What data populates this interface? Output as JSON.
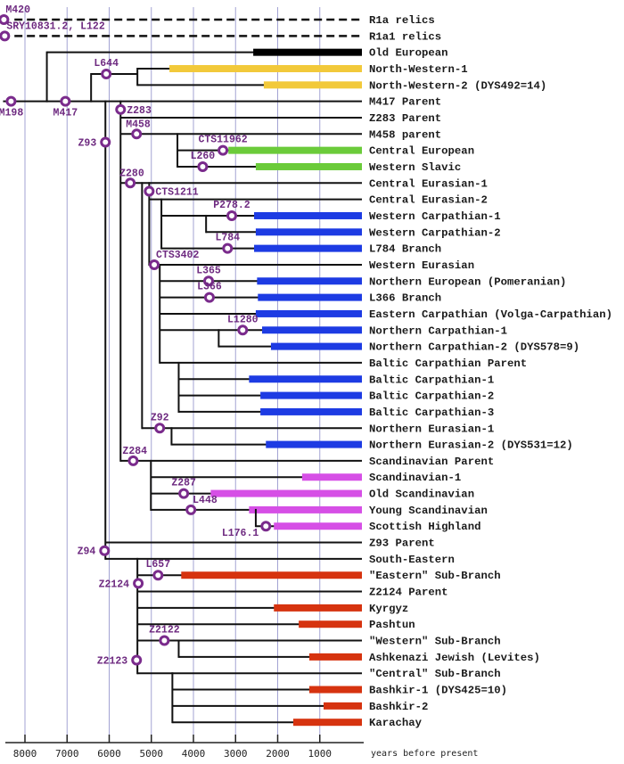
{
  "colors": {
    "grid": "#a3a3d3",
    "line": "#111111",
    "marker": "#7a2b8c",
    "black": "#000000",
    "yellow": "#f2c93a",
    "green": "#6bcb3a",
    "blue": "#1d3be3",
    "magenta": "#d64fe6",
    "red": "#d6330f"
  },
  "axis": {
    "title": "years before present",
    "ticks": [
      8000,
      7000,
      6000,
      5000,
      4000,
      3000,
      2000,
      1000
    ],
    "range": [
      8600,
      0
    ]
  },
  "rows": [
    {
      "label": "R1a relics",
      "start": 8250,
      "dashed": true
    },
    {
      "label": "R1a1 relics",
      "start": 8250,
      "dashed": true
    },
    {
      "label": "Old European",
      "start": 7480,
      "bar": 2580,
      "color": "black"
    },
    {
      "label": "North-Western-1",
      "start": 5330,
      "bar": 4570,
      "color": "yellow"
    },
    {
      "label": "North-Western-2 (DYS492=14)",
      "start": 5330,
      "bar": 2330,
      "color": "yellow"
    },
    {
      "label": "M417 Parent",
      "start": 8520
    },
    {
      "label": "Z283 Parent",
      "start": 5730
    },
    {
      "label": "M458 parent",
      "start": 5730
    },
    {
      "label": "Central European",
      "start": 4380,
      "bar": 3170,
      "color": "green"
    },
    {
      "label": "Western Slavic",
      "start": 4380,
      "bar": 2520,
      "color": "green"
    },
    {
      "label": "Central Eurasian-1",
      "start": 5730
    },
    {
      "label": "Central Eurasian-2",
      "start": 5050
    },
    {
      "label": "Western Carpathian-1",
      "start": 4760,
      "bar": 2560,
      "color": "blue"
    },
    {
      "label": "Western Carpathian-2",
      "start": 3700,
      "bar": 2520,
      "color": "blue"
    },
    {
      "label": "L784 Branch",
      "start": 4760,
      "bar": 2560,
      "color": "blue"
    },
    {
      "label": "Western Eurasian",
      "start": 5050
    },
    {
      "label": "Northern European (Pomeranian)",
      "start": 4800,
      "bar": 2490,
      "color": "blue"
    },
    {
      "label": "L366 Branch",
      "start": 4800,
      "bar": 2470,
      "color": "blue"
    },
    {
      "label": "Eastern Carpathian (Volga-Carpathian)",
      "start": 4800,
      "bar": 2520,
      "color": "blue"
    },
    {
      "label": "Northern Carpathian-1",
      "start": 4800,
      "bar": 2370,
      "color": "blue"
    },
    {
      "label": "Northern Carpathian-2 (DYS578=9)",
      "start": 3400,
      "bar": 2160,
      "color": "blue"
    },
    {
      "label": "Baltic Carpathian Parent",
      "start": 4800
    },
    {
      "label": "Baltic Carpathian-1",
      "start": 4350,
      "bar": 2680,
      "color": "blue"
    },
    {
      "label": "Baltic Carpathian-2",
      "start": 4350,
      "bar": 2410,
      "color": "blue"
    },
    {
      "label": "Baltic Carpathian-3",
      "start": 4350,
      "bar": 2410,
      "color": "blue"
    },
    {
      "label": "Northern Eurasian-1",
      "start": 5220
    },
    {
      "label": "Northern Eurasian-2 (DYS531=12)",
      "start": 4520,
      "bar": 2280,
      "color": "blue"
    },
    {
      "label": "Scandinavian Parent",
      "start": 5730
    },
    {
      "label": "Scandinavian-1",
      "start": 5010,
      "bar": 1420,
      "color": "magenta"
    },
    {
      "label": "Old Scandinavian",
      "start": 5010,
      "bar": 3590,
      "color": "magenta"
    },
    {
      "label": "Young Scandinavian",
      "start": 5010,
      "bar": 2680,
      "color": "magenta"
    },
    {
      "label": "Scottish Highland",
      "start": 2520,
      "bar": 2090,
      "color": "magenta"
    },
    {
      "label": "Z93 Parent",
      "start": 6090
    },
    {
      "label": "South-Eastern",
      "start": 6090
    },
    {
      "label": "\"Eastern\" Sub-Branch",
      "start": 5330,
      "bar": 4290,
      "color": "red"
    },
    {
      "label": "Z2124 Parent",
      "start": 5330
    },
    {
      "label": "Kyrgyz",
      "start": 5330,
      "bar": 2090,
      "color": "red"
    },
    {
      "label": "Pashtun",
      "start": 5330,
      "bar": 1500,
      "color": "red"
    },
    {
      "label": "\"Western\" Sub-Branch",
      "start": 5330
    },
    {
      "label": "Ashkenazi Jewish (Levites)",
      "start": 4350,
      "bar": 1250,
      "color": "red"
    },
    {
      "label": "\"Central\" Sub-Branch",
      "start": 5330
    },
    {
      "label": "Bashkir-1 (DYS425=10)",
      "start": 4500,
      "bar": 1250,
      "color": "red"
    },
    {
      "label": "Bashkir-2",
      "start": 4500,
      "bar": 910,
      "color": "red"
    },
    {
      "label": "Karachay",
      "start": 4500,
      "bar": 1630,
      "color": "red"
    }
  ],
  "extra_branches": [
    {
      "row": 3.33,
      "from": 6430,
      "to": 5330
    }
  ],
  "verticals": [
    {
      "year": 7480,
      "rows": [
        2,
        5
      ]
    },
    {
      "year": 6430,
      "rows": [
        3.33,
        5
      ]
    },
    {
      "year": 5330,
      "rows": [
        3,
        4
      ]
    },
    {
      "year": 6090,
      "rows": [
        5,
        33
      ]
    },
    {
      "year": 5730,
      "rows": [
        5,
        27
      ]
    },
    {
      "year": 4380,
      "rows": [
        7,
        9
      ]
    },
    {
      "year": 5220,
      "rows": [
        10,
        25
      ]
    },
    {
      "year": 5050,
      "rows": [
        10,
        15
      ]
    },
    {
      "year": 4760,
      "rows": [
        11,
        14
      ]
    },
    {
      "year": 3700,
      "rows": [
        12,
        13
      ]
    },
    {
      "year": 4800,
      "rows": [
        15,
        21
      ]
    },
    {
      "year": 3400,
      "rows": [
        19,
        20
      ]
    },
    {
      "year": 4350,
      "rows": [
        21,
        24
      ]
    },
    {
      "year": 4520,
      "rows": [
        25,
        26
      ]
    },
    {
      "year": 5010,
      "rows": [
        27,
        30
      ]
    },
    {
      "year": 2520,
      "rows": [
        30,
        31
      ]
    },
    {
      "year": 5330,
      "rows": [
        33,
        40
      ]
    },
    {
      "year": 4350,
      "rows": [
        38,
        39
      ]
    },
    {
      "year": 4500,
      "rows": [
        40,
        43
      ]
    }
  ],
  "markers": [
    {
      "label": "M420",
      "year": 8500,
      "row": 0,
      "pos": "above-right"
    },
    {
      "label": "SRY10831.2, L122",
      "year": 8480,
      "row": 1,
      "pos": "above-right"
    },
    {
      "label": "M198",
      "year": 8330,
      "row": 5,
      "pos": "below"
    },
    {
      "label": "M417",
      "year": 7040,
      "row": 5,
      "pos": "below"
    },
    {
      "label": "L644",
      "year": 6070,
      "row": 3.33,
      "pos": "above"
    },
    {
      "label": "Z283",
      "year": 5730,
      "row": 5.5,
      "pos": "right"
    },
    {
      "label": "M458",
      "year": 5350,
      "row": 7,
      "pos": "above-left"
    },
    {
      "label": "Z93",
      "year": 6090,
      "row": 7.5,
      "pos": "left"
    },
    {
      "label": "CTS11962",
      "year": 3300,
      "row": 8,
      "pos": "above"
    },
    {
      "label": "L260",
      "year": 3780,
      "row": 9,
      "pos": "above"
    },
    {
      "label": "Z280",
      "year": 5500,
      "row": 10,
      "pos": "above-left"
    },
    {
      "label": "CTS1211",
      "year": 5050,
      "row": 10.5,
      "pos": "right"
    },
    {
      "label": "P278.2",
      "year": 3090,
      "row": 12,
      "pos": "above"
    },
    {
      "label": "L784",
      "year": 3190,
      "row": 14,
      "pos": "above"
    },
    {
      "label": "CTS3402",
      "year": 4930,
      "row": 15,
      "pos": "above-right"
    },
    {
      "label": "L365",
      "year": 3640,
      "row": 16,
      "pos": "above"
    },
    {
      "label": "L366",
      "year": 3620,
      "row": 17,
      "pos": "above"
    },
    {
      "label": "L1280",
      "year": 2830,
      "row": 19,
      "pos": "above"
    },
    {
      "label": "Z92",
      "year": 4800,
      "row": 25,
      "pos": "above"
    },
    {
      "label": "Z284",
      "year": 5430,
      "row": 27,
      "pos": "above-left"
    },
    {
      "label": "Z287",
      "year": 4230,
      "row": 29,
      "pos": "above"
    },
    {
      "label": "L448",
      "year": 4060,
      "row": 30,
      "pos": "above-right"
    },
    {
      "label": "L176.1",
      "year": 2280,
      "row": 31,
      "pos": "below-left"
    },
    {
      "label": "Z94",
      "year": 6110,
      "row": 32.5,
      "pos": "left"
    },
    {
      "label": "L657",
      "year": 4840,
      "row": 34,
      "pos": "above"
    },
    {
      "label": "Z2124",
      "year": 5310,
      "row": 34.5,
      "pos": "left"
    },
    {
      "label": "Z2122",
      "year": 4690,
      "row": 38,
      "pos": "above"
    },
    {
      "label": "Z2123",
      "year": 5350,
      "row": 39.2,
      "pos": "left"
    }
  ]
}
